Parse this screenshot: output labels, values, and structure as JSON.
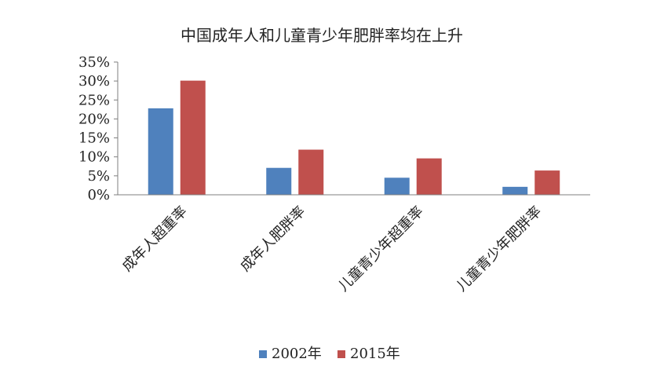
{
  "chart_data": {
    "type": "bar",
    "title": "中国成年人和儿童青少年肥胖率均在上升",
    "categories": [
      "成年人超重率",
      "成年人肥胖率",
      "儿童青少年超重率",
      "儿童青少年肥胖率"
    ],
    "series": [
      {
        "name": "2002年",
        "values": [
          22.8,
          7.1,
          4.5,
          2.1
        ],
        "color": "#4f81bd"
      },
      {
        "name": "2015年",
        "values": [
          30.1,
          11.9,
          9.6,
          6.4
        ],
        "color": "#c0504d"
      }
    ],
    "ylim": [
      0,
      35
    ],
    "yticks": [
      "0%",
      "5%",
      "10%",
      "15%",
      "20%",
      "25%",
      "30%",
      "35%"
    ],
    "grid": false,
    "legend_position": "bottom"
  }
}
